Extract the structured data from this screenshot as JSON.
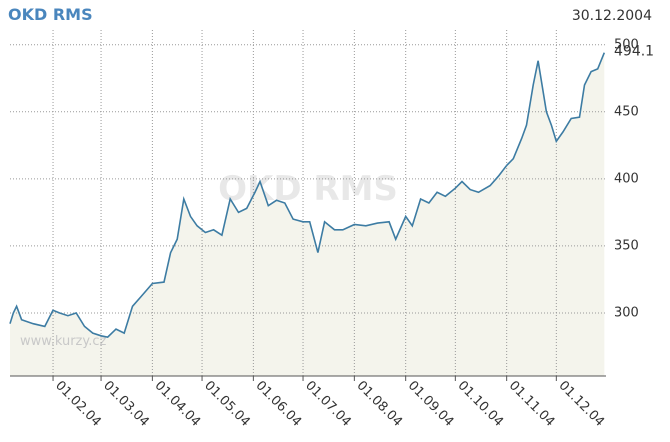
{
  "chart_data": {
    "type": "line",
    "title": "OKD RMS",
    "date": "30.12.2004",
    "watermark": "OKD RMS",
    "source": "www.kurzy.cz",
    "x": [
      "2004-01-06",
      "2004-01-08",
      "2004-01-10",
      "2004-01-13",
      "2004-01-20",
      "2004-01-27",
      "2004-02-01",
      "2004-02-05",
      "2004-02-10",
      "2004-02-15",
      "2004-02-20",
      "2004-02-25",
      "2004-03-01",
      "2004-03-05",
      "2004-03-10",
      "2004-03-15",
      "2004-03-20",
      "2004-03-25",
      "2004-04-01",
      "2004-04-08",
      "2004-04-12",
      "2004-04-16",
      "2004-04-20",
      "2004-04-24",
      "2004-04-28",
      "2004-05-03",
      "2004-05-08",
      "2004-05-13",
      "2004-05-18",
      "2004-05-23",
      "2004-05-28",
      "2004-06-02",
      "2004-06-05",
      "2004-06-10",
      "2004-06-15",
      "2004-06-20",
      "2004-06-25",
      "2004-07-01",
      "2004-07-05",
      "2004-07-10",
      "2004-07-14",
      "2004-07-20",
      "2004-07-25",
      "2004-08-01",
      "2004-08-08",
      "2004-08-15",
      "2004-08-22",
      "2004-08-26",
      "2004-09-01",
      "2004-09-05",
      "2004-09-10",
      "2004-09-15",
      "2004-09-20",
      "2004-09-25",
      "2004-10-01",
      "2004-10-05",
      "2004-10-10",
      "2004-10-15",
      "2004-10-22",
      "2004-10-27",
      "2004-11-01",
      "2004-11-05",
      "2004-11-10",
      "2004-11-13",
      "2004-11-17",
      "2004-11-20",
      "2004-11-25",
      "2004-11-28",
      "2004-12-01",
      "2004-12-05",
      "2004-12-10",
      "2004-12-15",
      "2004-12-18",
      "2004-12-22",
      "2004-12-26",
      "2004-12-30"
    ],
    "series": [
      {
        "name": "OKD RMS",
        "color": "#3d7ca3",
        "values": [
          292,
          300,
          305,
          295,
          292,
          290,
          302,
          300,
          298,
          300,
          290,
          285,
          283,
          282,
          288,
          285,
          305,
          312,
          322,
          323,
          345,
          355,
          385,
          372,
          365,
          360,
          362,
          358,
          385,
          375,
          378,
          390,
          398,
          380,
          384,
          382,
          370,
          368,
          368,
          345,
          368,
          362,
          362,
          366,
          365,
          367,
          368,
          355,
          372,
          365,
          385,
          382,
          390,
          387,
          393,
          398,
          392,
          390,
          395,
          402,
          410,
          415,
          430,
          440,
          470,
          488,
          450,
          440,
          428,
          435,
          445,
          446,
          470,
          480,
          482,
          494.1
        ]
      }
    ],
    "fill": "#f4f4ec",
    "xlim": [
      "2004-01-06",
      "2004-12-31"
    ],
    "xticks": [
      {
        "value": "2004-02-01",
        "label": "01.02.04"
      },
      {
        "value": "2004-03-01",
        "label": "01.03.04"
      },
      {
        "value": "2004-04-01",
        "label": "01.04.04"
      },
      {
        "value": "2004-05-01",
        "label": "01.05.04"
      },
      {
        "value": "2004-06-01",
        "label": "01.06.04"
      },
      {
        "value": "2004-07-01",
        "label": "01.07.04"
      },
      {
        "value": "2004-08-01",
        "label": "01.08.04"
      },
      {
        "value": "2004-09-01",
        "label": "01.09.04"
      },
      {
        "value": "2004-10-01",
        "label": "01.10.04"
      },
      {
        "value": "2004-11-01",
        "label": "01.11.04"
      },
      {
        "value": "2004-12-01",
        "label": "01.12.04"
      }
    ],
    "ylim": [
      253,
      511
    ],
    "yticks": [
      300,
      350,
      400,
      450,
      500
    ],
    "grid": true
  }
}
